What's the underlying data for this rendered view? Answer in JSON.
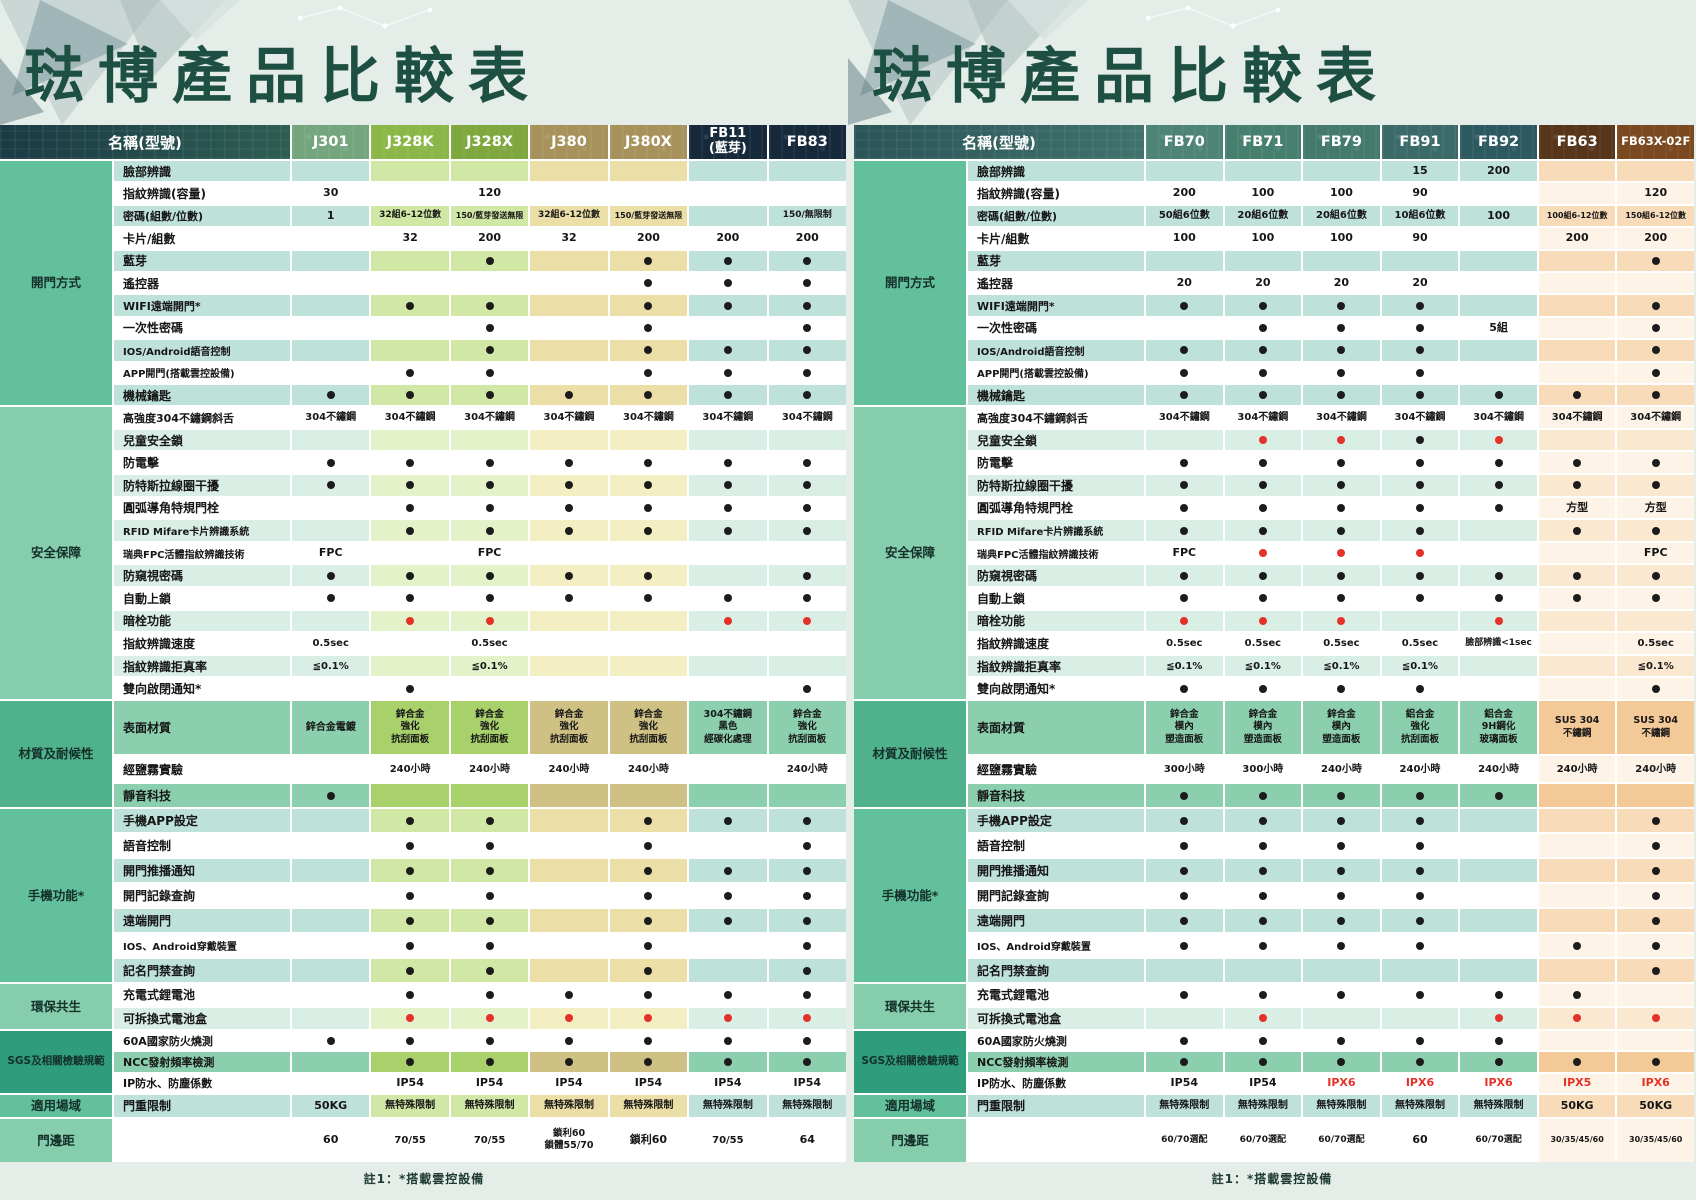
{
  "footnote": "註1：*搭載雲控設備",
  "palette": {
    "dot": "#1c1c1c",
    "red": "#e53229",
    "label": {
      "t": "#bee1da",
      "w": "#ffffff",
      "m": "#d9eee5",
      "g": "#8bcfae"
    },
    "plain": {
      "t": "#bee1da",
      "w": "#ffffff",
      "m": "#d9eee5",
      "g": "#8bcfae"
    },
    "green": {
      "t": "#d0e7a5",
      "w": "#ffffff",
      "m": "#e4f2c9",
      "g": "#a8d06b"
    },
    "tan": {
      "t": "#ebdfa7",
      "w": "#ffffff",
      "m": "#f4eec3",
      "g": "#cfc083"
    },
    "orange": {
      "t": "#f8dcba",
      "w": "#fdf3e6",
      "m": "#fbe8d0",
      "g": "#f3c997"
    }
  },
  "categories": [
    {
      "label": "開門方式",
      "start": 1,
      "span": 11,
      "color": "#63c09c"
    },
    {
      "label": "安全保障",
      "start": 12,
      "span": 13,
      "color": "#85cdac"
    },
    {
      "label": "材質及耐候性",
      "start": 25,
      "span": 3,
      "color": "#50b28c"
    },
    {
      "label": "手機功能*",
      "start": 28,
      "span": 7,
      "color": "#63c09c"
    },
    {
      "label": "環保共生",
      "start": 35,
      "span": 2,
      "color": "#85cdac"
    },
    {
      "label": "SGS及相關檢驗規範",
      "start": 37,
      "span": 3,
      "color": "#2f9c7c"
    },
    {
      "label": "適用場域",
      "start": 40,
      "span": 1,
      "color": "#63c09c"
    },
    {
      "label": "門邊距",
      "start": 41,
      "span": 1,
      "color": "#85cdac"
    }
  ],
  "row_labels": [
    {
      "label": "臉部辨識",
      "tone": "t"
    },
    {
      "label": "指紋辨識(容量)",
      "tone": "w"
    },
    {
      "label": "密碼(組數/位數)",
      "tone": "t"
    },
    {
      "label": "卡片/組數",
      "tone": "w"
    },
    {
      "label": "藍芽",
      "tone": "t"
    },
    {
      "label": "遙控器",
      "tone": "w"
    },
    {
      "label": "WIFI遠端開門*",
      "tone": "t"
    },
    {
      "label": "一次性密碼",
      "tone": "w"
    },
    {
      "label": "IOS/Android語音控制",
      "tone": "t"
    },
    {
      "label": "APP開門(搭載雲控設備)",
      "tone": "w"
    },
    {
      "label": "機械鑰匙",
      "tone": "t"
    },
    {
      "label": "高強度304不鏽鋼斜舌",
      "tone": "w"
    },
    {
      "label": "兒童安全鎖",
      "tone": "m"
    },
    {
      "label": "防電擊",
      "tone": "w"
    },
    {
      "label": "防特斯拉線圈干擾",
      "tone": "m"
    },
    {
      "label": "圓弧導角特規門栓",
      "tone": "w"
    },
    {
      "label": "RFID Mifare卡片辨識系統",
      "tone": "m"
    },
    {
      "label": "瑞典FPC活體指紋辨識技術",
      "tone": "w"
    },
    {
      "label": "防窺視密碼",
      "tone": "m"
    },
    {
      "label": "自動上鎖",
      "tone": "w"
    },
    {
      "label": "暗栓功能",
      "tone": "m"
    },
    {
      "label": "指紋辨識速度",
      "tone": "w"
    },
    {
      "label": "指紋辨識拒真率",
      "tone": "m"
    },
    {
      "label": "雙向啟閉通知*",
      "tone": "w"
    },
    {
      "label": "表面材質",
      "tone": "g"
    },
    {
      "label": "經鹽霧實驗",
      "tone": "w"
    },
    {
      "label": "靜音科技",
      "tone": "g"
    },
    {
      "label": "手機APP設定",
      "tone": "t"
    },
    {
      "label": "語音控制",
      "tone": "w"
    },
    {
      "label": "開門推播通知",
      "tone": "t"
    },
    {
      "label": "開門記錄查詢",
      "tone": "w"
    },
    {
      "label": "遠端開門",
      "tone": "t"
    },
    {
      "label": "IOS、Android穿戴裝置",
      "tone": "w"
    },
    {
      "label": "記名門禁查詢",
      "tone": "t"
    },
    {
      "label": "充電式鋰電池",
      "tone": "w"
    },
    {
      "label": "可拆換式電池盒",
      "tone": "m"
    },
    {
      "label": "60A國家防火燒測",
      "tone": "w"
    },
    {
      "label": "NCC發射頻率檢測",
      "tone": "g"
    },
    {
      "label": "IP防水、防塵係數",
      "tone": "w"
    },
    {
      "label": "門重限制",
      "tone": "t"
    },
    {
      "label": "",
      "tone": "w"
    }
  ],
  "tables": [
    {
      "title": "琺博產品比較表",
      "name_header": "名稱(型號)",
      "name_bg": [
        "#1b3a45",
        "#2d5e52"
      ],
      "models": [
        {
          "label": "J301",
          "color": "#74a57d",
          "type": "plain"
        },
        {
          "label": "J328K",
          "color": "#8bb648",
          "type": "green"
        },
        {
          "label": "J328X",
          "color": "#7ea73e",
          "type": "green"
        },
        {
          "label": "J380",
          "color": "#a7925c",
          "type": "tan"
        },
        {
          "label": "J380X",
          "color": "#a7925c",
          "type": "tan"
        },
        {
          "label": "FB11\n(藍芽)",
          "color": "#16293b",
          "type": "plain"
        },
        {
          "label": "FB83",
          "color": "#16293b",
          "type": "plain"
        }
      ],
      "cells": [
        [
          "",
          "",
          "",
          "",
          "",
          "",
          ""
        ],
        [
          "30",
          "",
          "120",
          "",
          "",
          "",
          ""
        ],
        [
          "1",
          "32組6-12位數",
          "150/藍芽發送無限",
          "32組6-12位數",
          "150/藍芽發送無限",
          "",
          "150/無限制"
        ],
        [
          "",
          "32",
          "200",
          "32",
          "200",
          "200",
          "200"
        ],
        [
          "",
          "",
          "D",
          "",
          "D",
          "D",
          "D"
        ],
        [
          "",
          "",
          "",
          "",
          "D",
          "D",
          "D"
        ],
        [
          "",
          "D",
          "D",
          "",
          "D",
          "D",
          "D"
        ],
        [
          "",
          "",
          "D",
          "",
          "D",
          "",
          "D"
        ],
        [
          "",
          "",
          "D",
          "",
          "D",
          "D",
          "D"
        ],
        [
          "",
          "D",
          "D",
          "",
          "D",
          "D",
          "D"
        ],
        [
          "D",
          "D",
          "D",
          "D",
          "D",
          "D",
          "D"
        ],
        [
          "304不鏽鋼",
          "304不鏽鋼",
          "304不鏽鋼",
          "304不鏽鋼",
          "304不鏽鋼",
          "304不鏽鋼",
          "304不鏽鋼"
        ],
        [
          "",
          "",
          "",
          "",
          "",
          "",
          ""
        ],
        [
          "D",
          "D",
          "D",
          "D",
          "D",
          "D",
          "D"
        ],
        [
          "D",
          "D",
          "D",
          "D",
          "D",
          "D",
          "D"
        ],
        [
          "",
          "D",
          "D",
          "D",
          "D",
          "D",
          "D"
        ],
        [
          "",
          "D",
          "D",
          "D",
          "D",
          "D",
          "D"
        ],
        [
          "FPC",
          "",
          "FPC",
          "",
          "",
          "",
          ""
        ],
        [
          "D",
          "D",
          "D",
          "D",
          "D",
          "",
          "D"
        ],
        [
          "D",
          "D",
          "D",
          "D",
          "D",
          "D",
          "D"
        ],
        [
          "",
          "R",
          "R",
          "",
          "",
          "R",
          "R"
        ],
        [
          "0.5sec",
          "",
          "0.5sec",
          "",
          "",
          "",
          ""
        ],
        [
          "≦0.1%",
          "",
          "≦0.1%",
          "",
          "",
          "",
          ""
        ],
        [
          "",
          "D",
          "",
          "",
          "",
          "",
          "D"
        ],
        [
          "鋅合金電鍍",
          "鋅合金\n強化\n抗刮面板",
          "鋅合金\n強化\n抗刮面板",
          "鋅合金\n強化\n抗刮面板",
          "鋅合金\n強化\n抗刮面板",
          "304不鏽鋼\n黑色\n經碳化處理",
          "鋅合金\n強化\n抗刮面板"
        ],
        [
          "",
          "240小時",
          "240小時",
          "240小時",
          "240小時",
          "",
          "240小時"
        ],
        [
          "D",
          "",
          "",
          "",
          "",
          "",
          ""
        ],
        [
          "",
          "D",
          "D",
          "",
          "D",
          "D",
          "D"
        ],
        [
          "",
          "D",
          "D",
          "",
          "D",
          "",
          "D"
        ],
        [
          "",
          "D",
          "D",
          "",
          "D",
          "D",
          "D"
        ],
        [
          "",
          "D",
          "D",
          "",
          "D",
          "D",
          "D"
        ],
        [
          "",
          "D",
          "D",
          "",
          "D",
          "D",
          "D"
        ],
        [
          "",
          "D",
          "D",
          "",
          "D",
          "",
          "D"
        ],
        [
          "",
          "D",
          "D",
          "",
          "D",
          "",
          "D"
        ],
        [
          "",
          "D",
          "D",
          "D",
          "D",
          "D",
          "D"
        ],
        [
          "",
          "R",
          "R",
          "R",
          "R",
          "R",
          "R"
        ],
        [
          "D",
          "D",
          "D",
          "D",
          "D",
          "D",
          "D"
        ],
        [
          "",
          "D",
          "D",
          "D",
          "D",
          "D",
          "D"
        ],
        [
          "",
          "IP54",
          "IP54",
          "IP54",
          "IP54",
          "IP54",
          "IP54"
        ],
        [
          "50KG",
          "無特殊限制",
          "無特殊限制",
          "無特殊限制",
          "無特殊限制",
          "無特殊限制",
          "無特殊限制"
        ],
        [
          "60",
          "70/55",
          "70/55",
          "鎖利60\n鎖體55/70",
          "鎖利60",
          "70/55",
          "64"
        ]
      ]
    },
    {
      "title": "琺博產品比較表",
      "name_header": "名稱(型號)",
      "name_bg": [
        "#2b5458",
        "#3f736c"
      ],
      "models": [
        {
          "label": "FB70",
          "color": "#4d8476",
          "type": "plain"
        },
        {
          "label": "FB71",
          "color": "#477f6f",
          "type": "plain"
        },
        {
          "label": "FB79",
          "color": "#437a6c",
          "type": "plain"
        },
        {
          "label": "FB91",
          "color": "#3a6b68",
          "type": "plain"
        },
        {
          "label": "FB92",
          "color": "#2c5a60",
          "type": "plain"
        },
        {
          "label": "FB63",
          "color": "#56351b",
          "type": "orange"
        },
        {
          "label": "FB63X-02F",
          "color": "#7a491f",
          "type": "orange"
        }
      ],
      "cells": [
        [
          "",
          "",
          "",
          "15",
          "200",
          "",
          ""
        ],
        [
          "200",
          "100",
          "100",
          "90",
          "",
          "",
          "120"
        ],
        [
          "50組6位數",
          "20組6位數",
          "20組6位數",
          "10組6位數",
          "100",
          "100組6-12位數",
          "150組6-12位數"
        ],
        [
          "100",
          "100",
          "100",
          "90",
          "",
          "200",
          "200"
        ],
        [
          "",
          "",
          "",
          "",
          "",
          "",
          "D"
        ],
        [
          "20",
          "20",
          "20",
          "20",
          "",
          "",
          ""
        ],
        [
          "D",
          "D",
          "D",
          "D",
          "",
          "",
          "D"
        ],
        [
          "",
          "D",
          "D",
          "D",
          "5組",
          "",
          "D"
        ],
        [
          "D",
          "D",
          "D",
          "D",
          "",
          "",
          "D"
        ],
        [
          "D",
          "D",
          "D",
          "D",
          "",
          "",
          "D"
        ],
        [
          "D",
          "D",
          "D",
          "D",
          "D",
          "D",
          "D"
        ],
        [
          "304不鏽鋼",
          "304不鏽鋼",
          "304不鏽鋼",
          "304不鏽鋼",
          "304不鏽鋼",
          "304不鏽鋼",
          "304不鏽鋼"
        ],
        [
          "",
          "R",
          "R",
          "D",
          "R",
          "",
          ""
        ],
        [
          "D",
          "D",
          "D",
          "D",
          "D",
          "D",
          "D"
        ],
        [
          "D",
          "D",
          "D",
          "D",
          "D",
          "D",
          "D"
        ],
        [
          "D",
          "D",
          "D",
          "D",
          "D",
          "方型",
          "方型"
        ],
        [
          "D",
          "D",
          "D",
          "D",
          "",
          "D",
          "D"
        ],
        [
          "FPC",
          "R",
          "R",
          "R",
          "",
          "",
          "FPC"
        ],
        [
          "D",
          "D",
          "D",
          "D",
          "D",
          "D",
          "D"
        ],
        [
          "D",
          "D",
          "D",
          "D",
          "D",
          "D",
          "D"
        ],
        [
          "R",
          "R",
          "R",
          "",
          "R",
          "",
          ""
        ],
        [
          "0.5sec",
          "0.5sec",
          "0.5sec",
          "0.5sec",
          "臉部辨識<1sec",
          "",
          "0.5sec"
        ],
        [
          "≦0.1%",
          "≦0.1%",
          "≦0.1%",
          "≦0.1%",
          "",
          "",
          "≦0.1%"
        ],
        [
          "D",
          "D",
          "D",
          "D",
          "",
          "",
          "D"
        ],
        [
          "鋅合金\n模內\n塑造面板",
          "鋅合金\n模內\n塑造面板",
          "鋅合金\n模內\n塑造面板",
          "鋁合金\n強化\n抗刮面板",
          "鋁合金\n9H鋼化\n玻璃面板",
          "SUS 304\n不鏽鋼",
          "SUS 304\n不鏽鋼"
        ],
        [
          "300小時",
          "300小時",
          "240小時",
          "240小時",
          "240小時",
          "240小時",
          "240小時"
        ],
        [
          "D",
          "D",
          "D",
          "D",
          "D",
          "",
          ""
        ],
        [
          "D",
          "D",
          "D",
          "D",
          "",
          "",
          "D"
        ],
        [
          "D",
          "D",
          "D",
          "D",
          "",
          "",
          "D"
        ],
        [
          "D",
          "D",
          "D",
          "D",
          "",
          "",
          "D"
        ],
        [
          "D",
          "D",
          "D",
          "D",
          "",
          "",
          "D"
        ],
        [
          "D",
          "D",
          "D",
          "D",
          "",
          "",
          "D"
        ],
        [
          "D",
          "D",
          "D",
          "D",
          "",
          "D",
          "D"
        ],
        [
          "",
          "",
          "",
          "",
          "",
          "",
          "D"
        ],
        [
          "D",
          "D",
          "D",
          "D",
          "D",
          "D",
          ""
        ],
        [
          "",
          "R",
          "",
          "",
          "R",
          "R",
          "R"
        ],
        [
          "D",
          "D",
          "D",
          "D",
          "D",
          "",
          ""
        ],
        [
          "D",
          "D",
          "D",
          "D",
          "D",
          "D",
          "D"
        ],
        [
          "IP54",
          "IP54",
          "r:IPX6",
          "r:IPX6",
          "r:IPX6",
          "r:IPX5",
          "r:IPX6"
        ],
        [
          "無特殊限制",
          "無特殊限制",
          "無特殊限制",
          "無特殊限制",
          "無特殊限制",
          "50KG",
          "50KG"
        ],
        [
          "60/70選配",
          "60/70選配",
          "60/70選配",
          "60",
          "60/70選配",
          "30/35/45/60",
          "30/35/45/60"
        ]
      ]
    }
  ]
}
